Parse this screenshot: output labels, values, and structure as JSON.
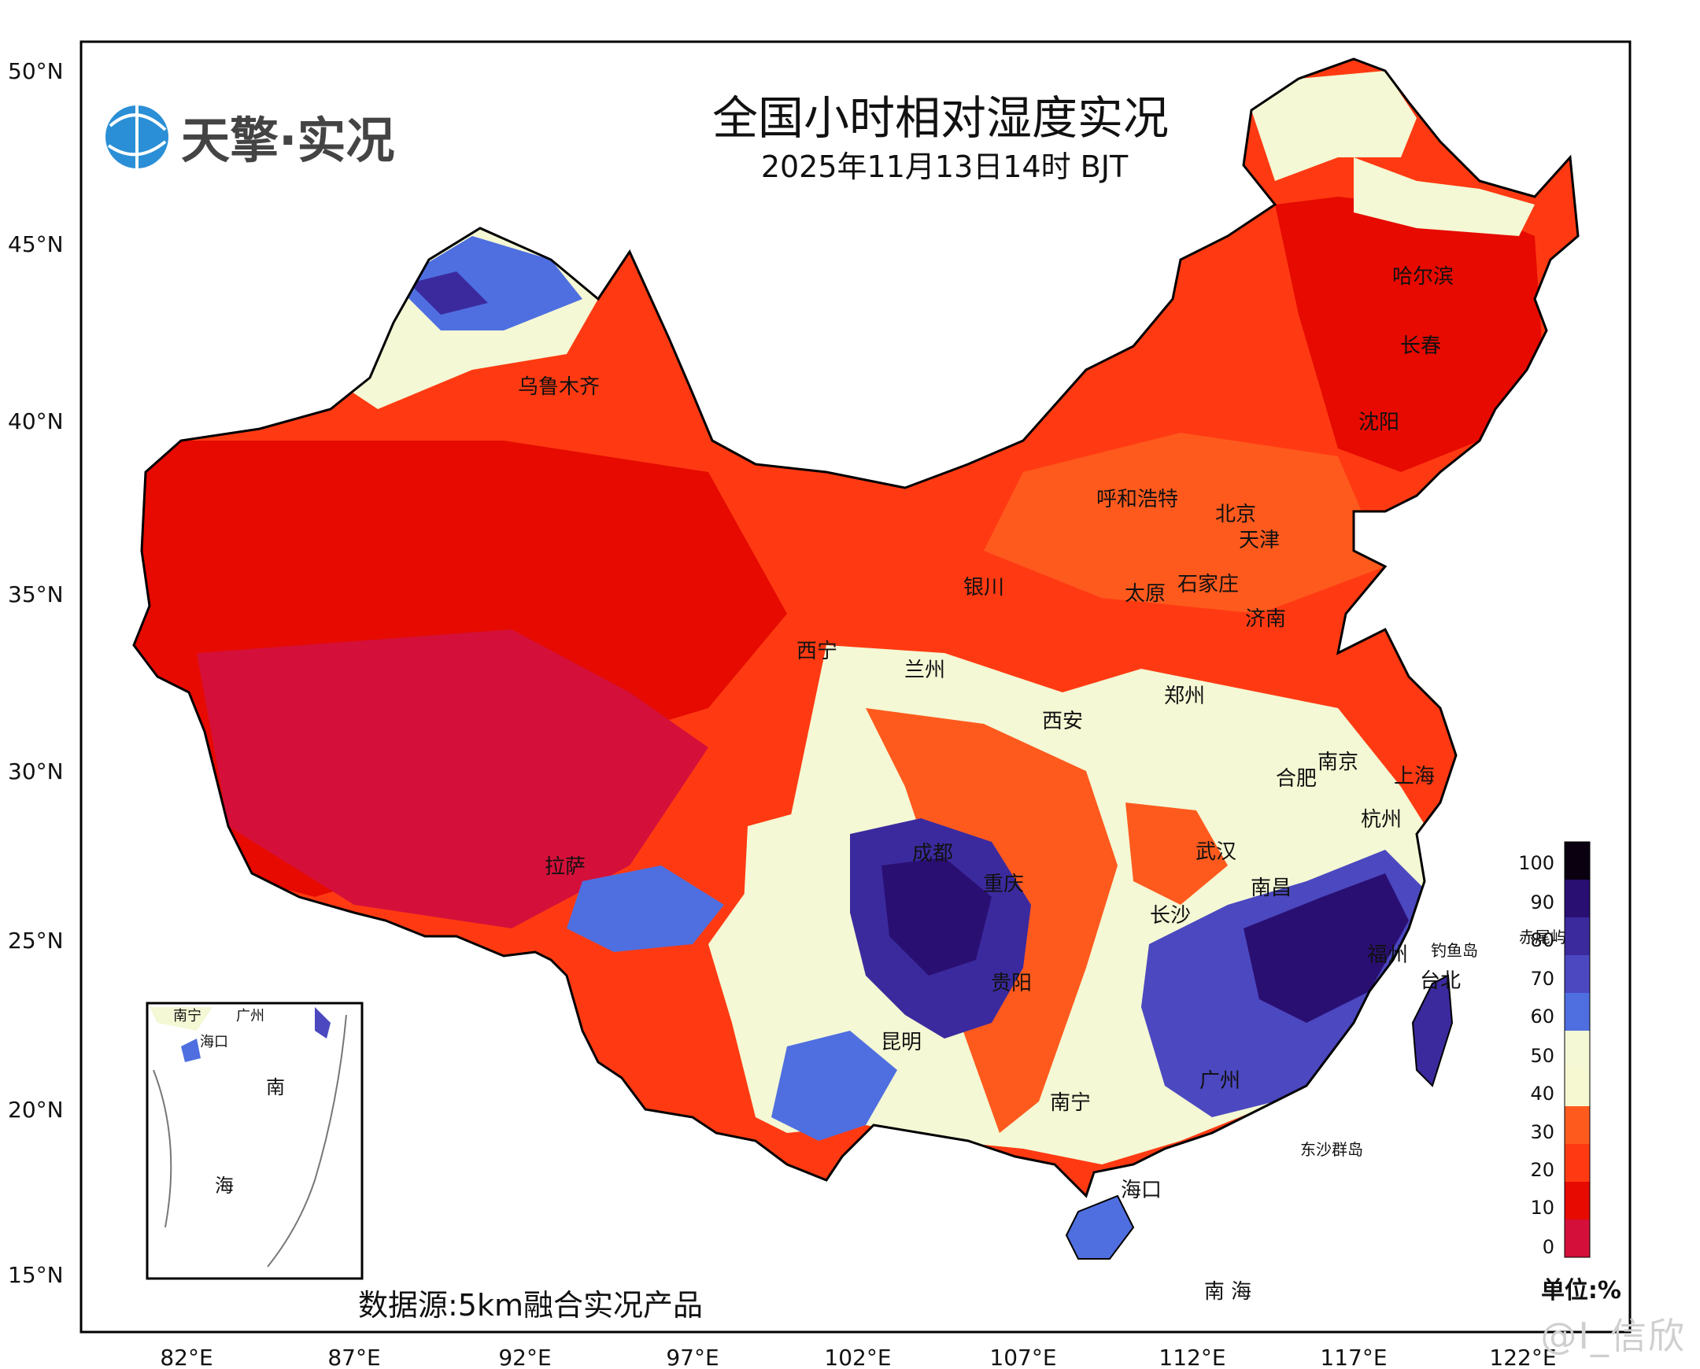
{
  "header": {
    "logo_text": "天擎·实况",
    "title": "全国小时相对湿度实况",
    "subtitle": "2025年11月13日14时 BJT"
  },
  "source_note": "数据源:5km融合实况产品",
  "watermark": "@Ⅰ_信欣",
  "axes": {
    "lat_labels": [
      "50°N",
      "45°N",
      "40°N",
      "35°N",
      "30°N",
      "25°N",
      "20°N",
      "15°N"
    ],
    "lon_labels": [
      "82°E",
      "87°E",
      "92°E",
      "97°E",
      "102°E",
      "107°E",
      "112°E",
      "117°E",
      "122°E"
    ]
  },
  "legend": {
    "unit": "单位:%",
    "ticks": [
      "100",
      "90",
      "80",
      "70",
      "60",
      "50",
      "40",
      "30",
      "20",
      "10",
      "0"
    ],
    "bands": [
      {
        "range": "90-100",
        "color": "#0a0010"
      },
      {
        "range": "80-90",
        "color": "#2a0f73"
      },
      {
        "range": "70-80",
        "color": "#3b2a9e"
      },
      {
        "range": "60-70",
        "color": "#4b48c0"
      },
      {
        "range": "50-60",
        "color": "#4f6fe0"
      },
      {
        "range": "40-50",
        "color": "#f4f8d4"
      },
      {
        "range": "30-40",
        "color": "#f6f8d2"
      },
      {
        "range": "20-30",
        "color": "#ff5a1e"
      },
      {
        "range": "10-20",
        "color": "#ff3a12"
      },
      {
        "range": "0-10",
        "color": "#e60a00"
      },
      {
        "range": "<0",
        "color": "#d4103a"
      }
    ]
  },
  "cities": [
    {
      "name": "哈尔滨"
    },
    {
      "name": "长春"
    },
    {
      "name": "沈阳"
    },
    {
      "name": "乌鲁木齐"
    },
    {
      "name": "呼和浩特"
    },
    {
      "name": "北京"
    },
    {
      "name": "天津"
    },
    {
      "name": "银川"
    },
    {
      "name": "太原"
    },
    {
      "name": "石家庄"
    },
    {
      "name": "济南"
    },
    {
      "name": "西宁"
    },
    {
      "name": "兰州"
    },
    {
      "name": "郑州"
    },
    {
      "name": "西安"
    },
    {
      "name": "南京"
    },
    {
      "name": "合肥"
    },
    {
      "name": "上海"
    },
    {
      "name": "杭州"
    },
    {
      "name": "武汉"
    },
    {
      "name": "成都"
    },
    {
      "name": "重庆"
    },
    {
      "name": "拉萨"
    },
    {
      "name": "南昌"
    },
    {
      "name": "长沙"
    },
    {
      "name": "福州"
    },
    {
      "name": "钓鱼岛"
    },
    {
      "name": "赤尾屿"
    },
    {
      "name": "台北"
    },
    {
      "name": "贵阳"
    },
    {
      "name": "昆明"
    },
    {
      "name": "广州"
    },
    {
      "name": "南宁"
    },
    {
      "name": "东沙群岛"
    },
    {
      "name": "海口"
    },
    {
      "name": "南 海"
    }
  ],
  "inset": {
    "labels": [
      {
        "name": "南宁"
      },
      {
        "name": "广州"
      },
      {
        "name": "海口"
      },
      {
        "name": "南"
      },
      {
        "name": "海"
      }
    ]
  }
}
